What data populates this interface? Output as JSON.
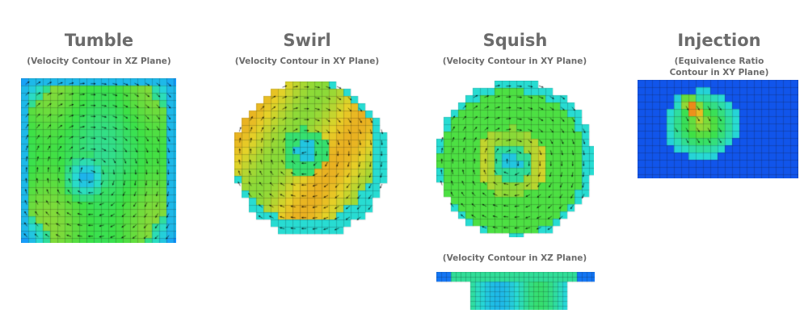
{
  "panels": [
    {
      "title": "Tumble",
      "subtitle": "(Velocity Contour in XZ Plane)"
    },
    {
      "title": "Swirl",
      "subtitle": "(Velocity Contour in XY Plane)"
    },
    {
      "title": "Squish",
      "subtitle": "(Velocity Contour in XY Plane)",
      "subtitle2": "(Velocity Contour in XZ Plane)"
    },
    {
      "title": "Injection",
      "subtitle_line1": "(Equivalence Ratio",
      "subtitle_line2": "Contour in XY Plane)"
    }
  ],
  "colors": {
    "title_text": "#6b6b6b",
    "contour_low": "#1030e0",
    "contour_mid": "#20e060",
    "contour_high": "#e82010",
    "grid_line": "#202020",
    "vector": "#000000"
  }
}
